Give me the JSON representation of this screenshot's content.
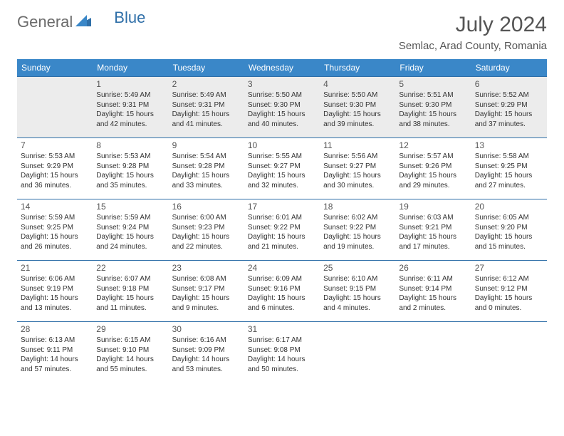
{
  "brand": {
    "part1": "General",
    "part2": "Blue"
  },
  "title": {
    "month": "July 2024",
    "location": "Semlac, Arad County, Romania"
  },
  "colors": {
    "header_bg": "#3a87c8",
    "border": "#2f6fa8",
    "text": "#333333",
    "muted": "#6b6b6b"
  },
  "days": [
    "Sunday",
    "Monday",
    "Tuesday",
    "Wednesday",
    "Thursday",
    "Friday",
    "Saturday"
  ],
  "weeks": [
    [
      null,
      {
        "n": "1",
        "sr": "Sunrise: 5:49 AM",
        "ss": "Sunset: 9:31 PM",
        "d1": "Daylight: 15 hours",
        "d2": "and 42 minutes."
      },
      {
        "n": "2",
        "sr": "Sunrise: 5:49 AM",
        "ss": "Sunset: 9:31 PM",
        "d1": "Daylight: 15 hours",
        "d2": "and 41 minutes."
      },
      {
        "n": "3",
        "sr": "Sunrise: 5:50 AM",
        "ss": "Sunset: 9:30 PM",
        "d1": "Daylight: 15 hours",
        "d2": "and 40 minutes."
      },
      {
        "n": "4",
        "sr": "Sunrise: 5:50 AM",
        "ss": "Sunset: 9:30 PM",
        "d1": "Daylight: 15 hours",
        "d2": "and 39 minutes."
      },
      {
        "n": "5",
        "sr": "Sunrise: 5:51 AM",
        "ss": "Sunset: 9:30 PM",
        "d1": "Daylight: 15 hours",
        "d2": "and 38 minutes."
      },
      {
        "n": "6",
        "sr": "Sunrise: 5:52 AM",
        "ss": "Sunset: 9:29 PM",
        "d1": "Daylight: 15 hours",
        "d2": "and 37 minutes."
      }
    ],
    [
      {
        "n": "7",
        "sr": "Sunrise: 5:53 AM",
        "ss": "Sunset: 9:29 PM",
        "d1": "Daylight: 15 hours",
        "d2": "and 36 minutes."
      },
      {
        "n": "8",
        "sr": "Sunrise: 5:53 AM",
        "ss": "Sunset: 9:28 PM",
        "d1": "Daylight: 15 hours",
        "d2": "and 35 minutes."
      },
      {
        "n": "9",
        "sr": "Sunrise: 5:54 AM",
        "ss": "Sunset: 9:28 PM",
        "d1": "Daylight: 15 hours",
        "d2": "and 33 minutes."
      },
      {
        "n": "10",
        "sr": "Sunrise: 5:55 AM",
        "ss": "Sunset: 9:27 PM",
        "d1": "Daylight: 15 hours",
        "d2": "and 32 minutes."
      },
      {
        "n": "11",
        "sr": "Sunrise: 5:56 AM",
        "ss": "Sunset: 9:27 PM",
        "d1": "Daylight: 15 hours",
        "d2": "and 30 minutes."
      },
      {
        "n": "12",
        "sr": "Sunrise: 5:57 AM",
        "ss": "Sunset: 9:26 PM",
        "d1": "Daylight: 15 hours",
        "d2": "and 29 minutes."
      },
      {
        "n": "13",
        "sr": "Sunrise: 5:58 AM",
        "ss": "Sunset: 9:25 PM",
        "d1": "Daylight: 15 hours",
        "d2": "and 27 minutes."
      }
    ],
    [
      {
        "n": "14",
        "sr": "Sunrise: 5:59 AM",
        "ss": "Sunset: 9:25 PM",
        "d1": "Daylight: 15 hours",
        "d2": "and 26 minutes."
      },
      {
        "n": "15",
        "sr": "Sunrise: 5:59 AM",
        "ss": "Sunset: 9:24 PM",
        "d1": "Daylight: 15 hours",
        "d2": "and 24 minutes."
      },
      {
        "n": "16",
        "sr": "Sunrise: 6:00 AM",
        "ss": "Sunset: 9:23 PM",
        "d1": "Daylight: 15 hours",
        "d2": "and 22 minutes."
      },
      {
        "n": "17",
        "sr": "Sunrise: 6:01 AM",
        "ss": "Sunset: 9:22 PM",
        "d1": "Daylight: 15 hours",
        "d2": "and 21 minutes."
      },
      {
        "n": "18",
        "sr": "Sunrise: 6:02 AM",
        "ss": "Sunset: 9:22 PM",
        "d1": "Daylight: 15 hours",
        "d2": "and 19 minutes."
      },
      {
        "n": "19",
        "sr": "Sunrise: 6:03 AM",
        "ss": "Sunset: 9:21 PM",
        "d1": "Daylight: 15 hours",
        "d2": "and 17 minutes."
      },
      {
        "n": "20",
        "sr": "Sunrise: 6:05 AM",
        "ss": "Sunset: 9:20 PM",
        "d1": "Daylight: 15 hours",
        "d2": "and 15 minutes."
      }
    ],
    [
      {
        "n": "21",
        "sr": "Sunrise: 6:06 AM",
        "ss": "Sunset: 9:19 PM",
        "d1": "Daylight: 15 hours",
        "d2": "and 13 minutes."
      },
      {
        "n": "22",
        "sr": "Sunrise: 6:07 AM",
        "ss": "Sunset: 9:18 PM",
        "d1": "Daylight: 15 hours",
        "d2": "and 11 minutes."
      },
      {
        "n": "23",
        "sr": "Sunrise: 6:08 AM",
        "ss": "Sunset: 9:17 PM",
        "d1": "Daylight: 15 hours",
        "d2": "and 9 minutes."
      },
      {
        "n": "24",
        "sr": "Sunrise: 6:09 AM",
        "ss": "Sunset: 9:16 PM",
        "d1": "Daylight: 15 hours",
        "d2": "and 6 minutes."
      },
      {
        "n": "25",
        "sr": "Sunrise: 6:10 AM",
        "ss": "Sunset: 9:15 PM",
        "d1": "Daylight: 15 hours",
        "d2": "and 4 minutes."
      },
      {
        "n": "26",
        "sr": "Sunrise: 6:11 AM",
        "ss": "Sunset: 9:14 PM",
        "d1": "Daylight: 15 hours",
        "d2": "and 2 minutes."
      },
      {
        "n": "27",
        "sr": "Sunrise: 6:12 AM",
        "ss": "Sunset: 9:12 PM",
        "d1": "Daylight: 15 hours",
        "d2": "and 0 minutes."
      }
    ],
    [
      {
        "n": "28",
        "sr": "Sunrise: 6:13 AM",
        "ss": "Sunset: 9:11 PM",
        "d1": "Daylight: 14 hours",
        "d2": "and 57 minutes."
      },
      {
        "n": "29",
        "sr": "Sunrise: 6:15 AM",
        "ss": "Sunset: 9:10 PM",
        "d1": "Daylight: 14 hours",
        "d2": "and 55 minutes."
      },
      {
        "n": "30",
        "sr": "Sunrise: 6:16 AM",
        "ss": "Sunset: 9:09 PM",
        "d1": "Daylight: 14 hours",
        "d2": "and 53 minutes."
      },
      {
        "n": "31",
        "sr": "Sunrise: 6:17 AM",
        "ss": "Sunset: 9:08 PM",
        "d1": "Daylight: 14 hours",
        "d2": "and 50 minutes."
      },
      null,
      null,
      null
    ]
  ]
}
